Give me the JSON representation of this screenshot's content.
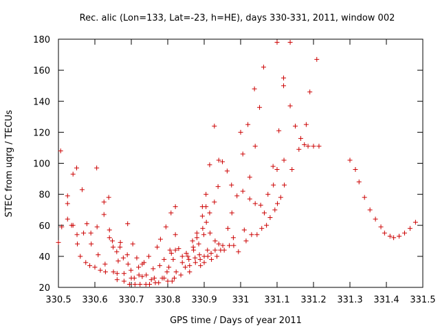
{
  "chart_data": {
    "type": "scatter",
    "title": "Rec. alic (Lon=133, Lat=-23, h=HE), days 330-331, 2011, window 002",
    "xlabel": "GPS time / Days of year 2011",
    "ylabel": "STEC from uqrg / TECUs",
    "xlim": [
      330.5,
      331.5
    ],
    "ylim": [
      20,
      180
    ],
    "xticks": [
      330.5,
      330.6,
      330.7,
      330.8,
      330.9,
      331.0,
      331.1,
      331.2,
      331.3,
      331.4,
      331.5
    ],
    "xtick_labels": [
      "330.5",
      "330.6",
      "330.7",
      "330.8",
      "330.9",
      "331",
      "331.1",
      "331.2",
      "331.3",
      "331.4",
      "331.5"
    ],
    "yticks": [
      20,
      40,
      60,
      80,
      100,
      120,
      140,
      160,
      180
    ],
    "ytick_labels": [
      "20",
      "40",
      "60",
      "80",
      "100",
      "120",
      "140",
      "160",
      "180"
    ],
    "grid": false,
    "legend": "none",
    "marker": "plus",
    "color": "#cc0000",
    "series": [
      {
        "points": [
          [
            330.5,
            49
          ],
          [
            330.509,
            59
          ],
          [
            330.506,
            108
          ],
          [
            330.525,
            79
          ],
          [
            330.525,
            74
          ],
          [
            330.525,
            64
          ],
          [
            330.536,
            60
          ],
          [
            330.54,
            93
          ],
          [
            330.54,
            60
          ],
          [
            330.55,
            97
          ],
          [
            330.551,
            54
          ],
          [
            330.552,
            48
          ],
          [
            330.56,
            40
          ],
          [
            330.565,
            83
          ],
          [
            330.569,
            55
          ],
          [
            330.575,
            36
          ],
          [
            330.578,
            61
          ],
          [
            330.586,
            34
          ],
          [
            330.589,
            55
          ],
          [
            330.59,
            48
          ],
          [
            330.6,
            33
          ],
          [
            330.605,
            97
          ],
          [
            330.606,
            59
          ],
          [
            330.609,
            41
          ],
          [
            330.615,
            31
          ],
          [
            330.625,
            75
          ],
          [
            330.625,
            67
          ],
          [
            330.628,
            35
          ],
          [
            330.629,
            30
          ],
          [
            330.638,
            78
          ],
          [
            330.64,
            57
          ],
          [
            330.64,
            52
          ],
          [
            330.648,
            50
          ],
          [
            330.65,
            46
          ],
          [
            330.651,
            30
          ],
          [
            330.66,
            43
          ],
          [
            330.661,
            29
          ],
          [
            330.661,
            25
          ],
          [
            330.664,
            37
          ],
          [
            330.669,
            46
          ],
          [
            330.67,
            49
          ],
          [
            330.678,
            39
          ],
          [
            330.68,
            29
          ],
          [
            330.68,
            24
          ],
          [
            330.689,
            41
          ],
          [
            330.69,
            61
          ],
          [
            330.691,
            35
          ],
          [
            330.695,
            22
          ],
          [
            330.699,
            31
          ],
          [
            330.7,
            26
          ],
          [
            330.704,
            48
          ],
          [
            330.708,
            26
          ],
          [
            330.71,
            22
          ],
          [
            330.715,
            39
          ],
          [
            330.72,
            33
          ],
          [
            330.721,
            28
          ],
          [
            330.724,
            22
          ],
          [
            330.73,
            35
          ],
          [
            330.73,
            27
          ],
          [
            330.735,
            36
          ],
          [
            330.74,
            22
          ],
          [
            330.741,
            28
          ],
          [
            330.748,
            40
          ],
          [
            330.75,
            22
          ],
          [
            330.755,
            25
          ],
          [
            330.76,
            32
          ],
          [
            330.763,
            26
          ],
          [
            330.766,
            23
          ],
          [
            330.771,
            46
          ],
          [
            330.775,
            23
          ],
          [
            330.778,
            34
          ],
          [
            330.78,
            51
          ],
          [
            330.785,
            26
          ],
          [
            330.79,
            38
          ],
          [
            330.79,
            26
          ],
          [
            330.795,
            59
          ],
          [
            330.798,
            30
          ],
          [
            330.8,
            24
          ],
          [
            330.803,
            33
          ],
          [
            330.806,
            44
          ],
          [
            330.809,
            68
          ],
          [
            330.81,
            42
          ],
          [
            330.812,
            24
          ],
          [
            330.815,
            38
          ],
          [
            330.818,
            26
          ],
          [
            330.821,
            72
          ],
          [
            330.821,
            54
          ],
          [
            330.821,
            44
          ],
          [
            330.823,
            30
          ],
          [
            330.83,
            45
          ],
          [
            330.836,
            28
          ],
          [
            330.84,
            36
          ],
          [
            330.84,
            40
          ],
          [
            330.848,
            33
          ],
          [
            330.851,
            42
          ],
          [
            330.855,
            40
          ],
          [
            330.858,
            38
          ],
          [
            330.86,
            34
          ],
          [
            330.86,
            30
          ],
          [
            330.868,
            50
          ],
          [
            330.87,
            46
          ],
          [
            330.871,
            44
          ],
          [
            330.875,
            39
          ],
          [
            330.876,
            36
          ],
          [
            330.88,
            55
          ],
          [
            330.88,
            52
          ],
          [
            330.885,
            48
          ],
          [
            330.887,
            41
          ],
          [
            330.889,
            38
          ],
          [
            330.89,
            34
          ],
          [
            330.895,
            72
          ],
          [
            330.895,
            66
          ],
          [
            330.896,
            58
          ],
          [
            330.899,
            54
          ],
          [
            330.9,
            40
          ],
          [
            330.9,
            36
          ],
          [
            330.905,
            80
          ],
          [
            330.905,
            72
          ],
          [
            330.906,
            62
          ],
          [
            330.909,
            44
          ],
          [
            330.91,
            40
          ],
          [
            330.915,
            99
          ],
          [
            330.915,
            68
          ],
          [
            330.916,
            55
          ],
          [
            330.919,
            42
          ],
          [
            330.92,
            38
          ],
          [
            330.928,
            124
          ],
          [
            330.928,
            75
          ],
          [
            330.93,
            50
          ],
          [
            330.93,
            44
          ],
          [
            330.935,
            40
          ],
          [
            330.938,
            85
          ],
          [
            330.94,
            102
          ],
          [
            330.94,
            48
          ],
          [
            330.945,
            44
          ],
          [
            330.95,
            101
          ],
          [
            330.951,
            47
          ],
          [
            330.955,
            44
          ],
          [
            330.963,
            95
          ],
          [
            330.965,
            58
          ],
          [
            330.969,
            47
          ],
          [
            330.975,
            86
          ],
          [
            330.976,
            68
          ],
          [
            330.98,
            52
          ],
          [
            330.981,
            47
          ],
          [
            330.99,
            79
          ],
          [
            330.994,
            43
          ],
          [
            331.0,
            120
          ],
          [
            331.006,
            106
          ],
          [
            331.006,
            82
          ],
          [
            331.01,
            57
          ],
          [
            331.015,
            50
          ],
          [
            331.02,
            125
          ],
          [
            331.025,
            91
          ],
          [
            331.025,
            77
          ],
          [
            331.03,
            54
          ],
          [
            331.038,
            148
          ],
          [
            331.04,
            111
          ],
          [
            331.04,
            74
          ],
          [
            331.045,
            54
          ],
          [
            331.052,
            136
          ],
          [
            331.055,
            73
          ],
          [
            331.058,
            58
          ],
          [
            331.063,
            162
          ],
          [
            331.065,
            68
          ],
          [
            331.071,
            60
          ],
          [
            331.075,
            80
          ],
          [
            331.081,
            65
          ],
          [
            331.089,
            98
          ],
          [
            331.09,
            86
          ],
          [
            331.094,
            70
          ],
          [
            331.1,
            178
          ],
          [
            331.1,
            96
          ],
          [
            331.101,
            74
          ],
          [
            331.105,
            121
          ],
          [
            331.11,
            78
          ],
          [
            331.118,
            155
          ],
          [
            331.118,
            150
          ],
          [
            331.119,
            102
          ],
          [
            331.12,
            86
          ],
          [
            331.136,
            178
          ],
          [
            331.136,
            137
          ],
          [
            331.141,
            96
          ],
          [
            331.15,
            124
          ],
          [
            331.16,
            109
          ],
          [
            331.165,
            116
          ],
          [
            331.175,
            112
          ],
          [
            331.18,
            125
          ],
          [
            331.185,
            111
          ],
          [
            331.19,
            146
          ],
          [
            331.2,
            111
          ],
          [
            331.209,
            167
          ],
          [
            331.215,
            111
          ],
          [
            331.3,
            102
          ],
          [
            331.315,
            96
          ],
          [
            331.325,
            88
          ],
          [
            331.34,
            78
          ],
          [
            331.355,
            70
          ],
          [
            331.37,
            64
          ],
          [
            331.385,
            59
          ],
          [
            331.395,
            55
          ],
          [
            331.41,
            53
          ],
          [
            331.42,
            52
          ],
          [
            331.435,
            53
          ],
          [
            331.45,
            55
          ],
          [
            331.465,
            58
          ],
          [
            331.48,
            62
          ]
        ]
      }
    ]
  }
}
